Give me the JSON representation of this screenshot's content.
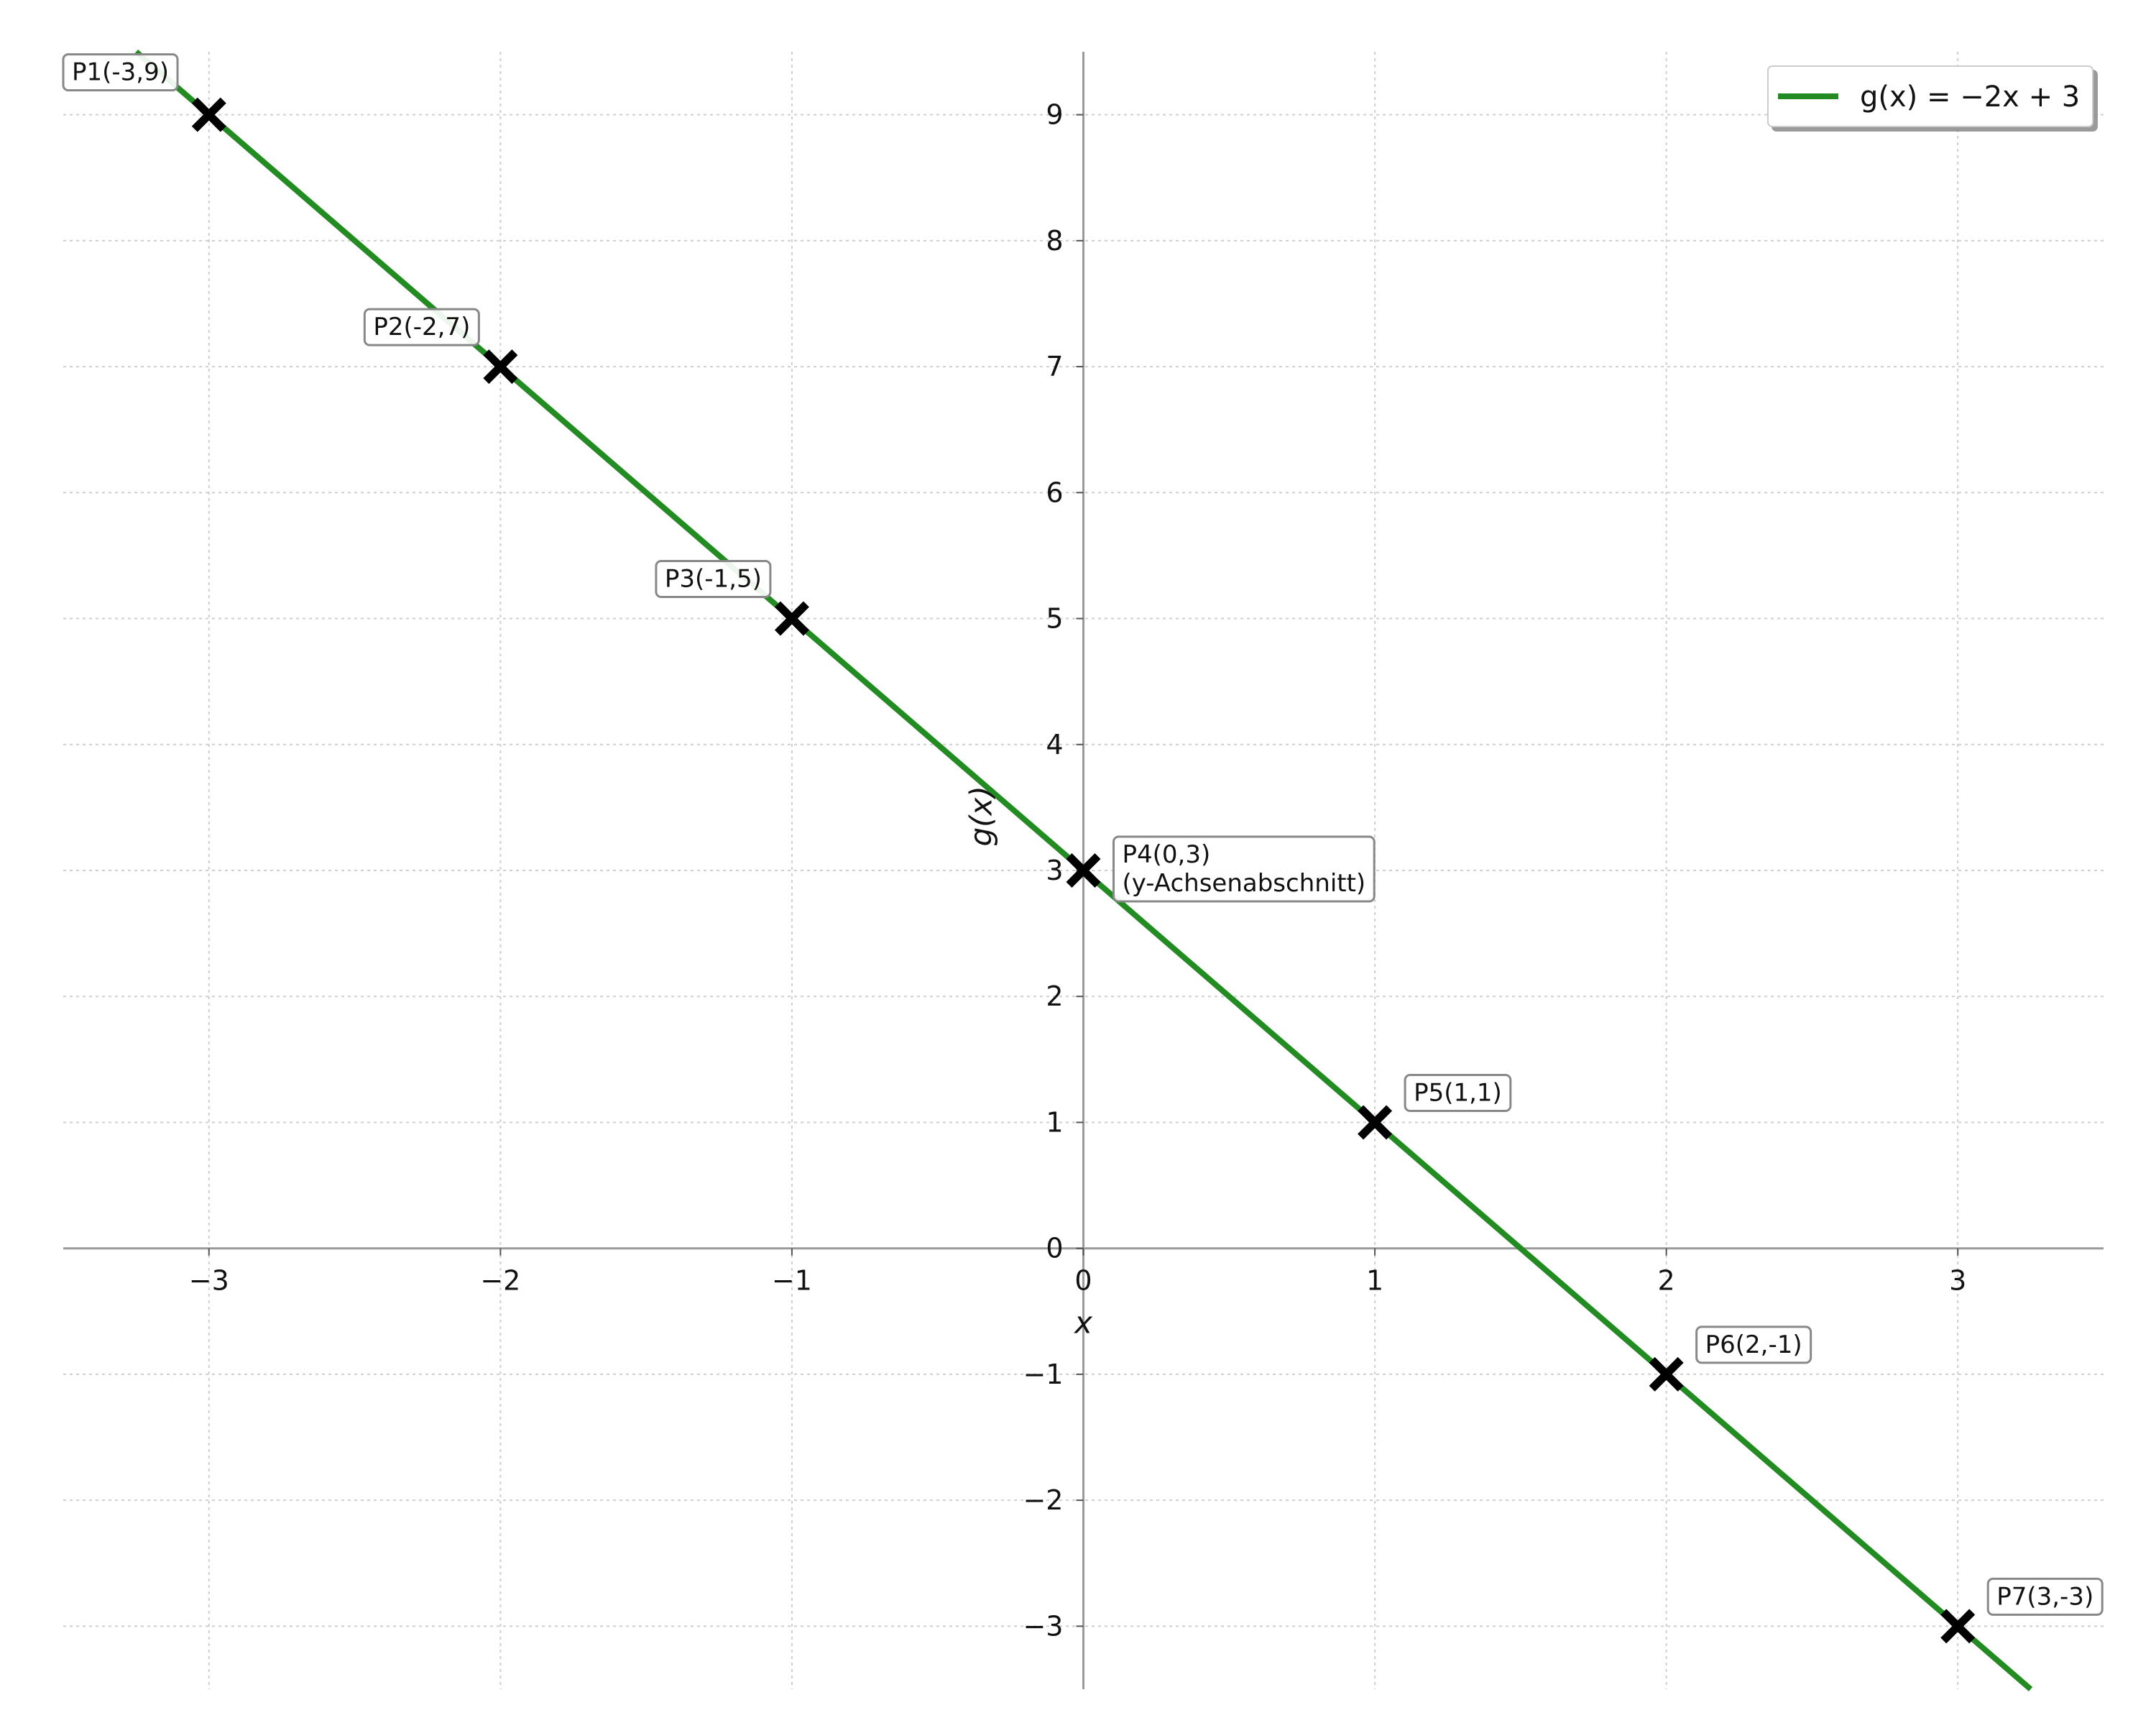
{
  "chart_data": {
    "type": "line",
    "xlabel": "x",
    "ylabel": "g(x)",
    "xlim": [
      -3.5,
      3.5
    ],
    "ylim": [
      -3.5,
      9.5
    ],
    "x_ticks": [
      -3,
      -2,
      -1,
      0,
      1,
      2,
      3
    ],
    "y_ticks": [
      -3,
      -2,
      -1,
      0,
      1,
      2,
      3,
      4,
      5,
      6,
      7,
      8,
      9
    ],
    "x_tick_labels": [
      "−3",
      "−2",
      "−1",
      "0",
      "1",
      "2",
      "3"
    ],
    "y_tick_labels": [
      "−3",
      "−2",
      "−1",
      "0",
      "1",
      "2",
      "3",
      "4",
      "5",
      "6",
      "7",
      "8",
      "9"
    ],
    "grid": true,
    "legend_position": "top-right",
    "series": [
      {
        "name": "g(x) = −2x + 3",
        "color": "#228B22",
        "slope": -2,
        "intercept": 3,
        "x_range": [
          -3.25,
          3.25
        ]
      }
    ],
    "points": [
      {
        "x": -3,
        "y": 9,
        "label": "P1(-3,9)"
      },
      {
        "x": -2,
        "y": 7,
        "label": "P2(-2,7)"
      },
      {
        "x": -1,
        "y": 5,
        "label": "P3(-1,5)"
      },
      {
        "x": 0,
        "y": 3,
        "label": "P4(0,3)",
        "label_line2": "(y-Achsenabschnitt)"
      },
      {
        "x": 1,
        "y": 1,
        "label": "P5(1,1)"
      },
      {
        "x": 2,
        "y": -1,
        "label": "P6(2,-1)"
      },
      {
        "x": 3,
        "y": -3,
        "label": "P7(3,-3)"
      }
    ],
    "marker": "x-filled",
    "marker_color": "#000000"
  }
}
